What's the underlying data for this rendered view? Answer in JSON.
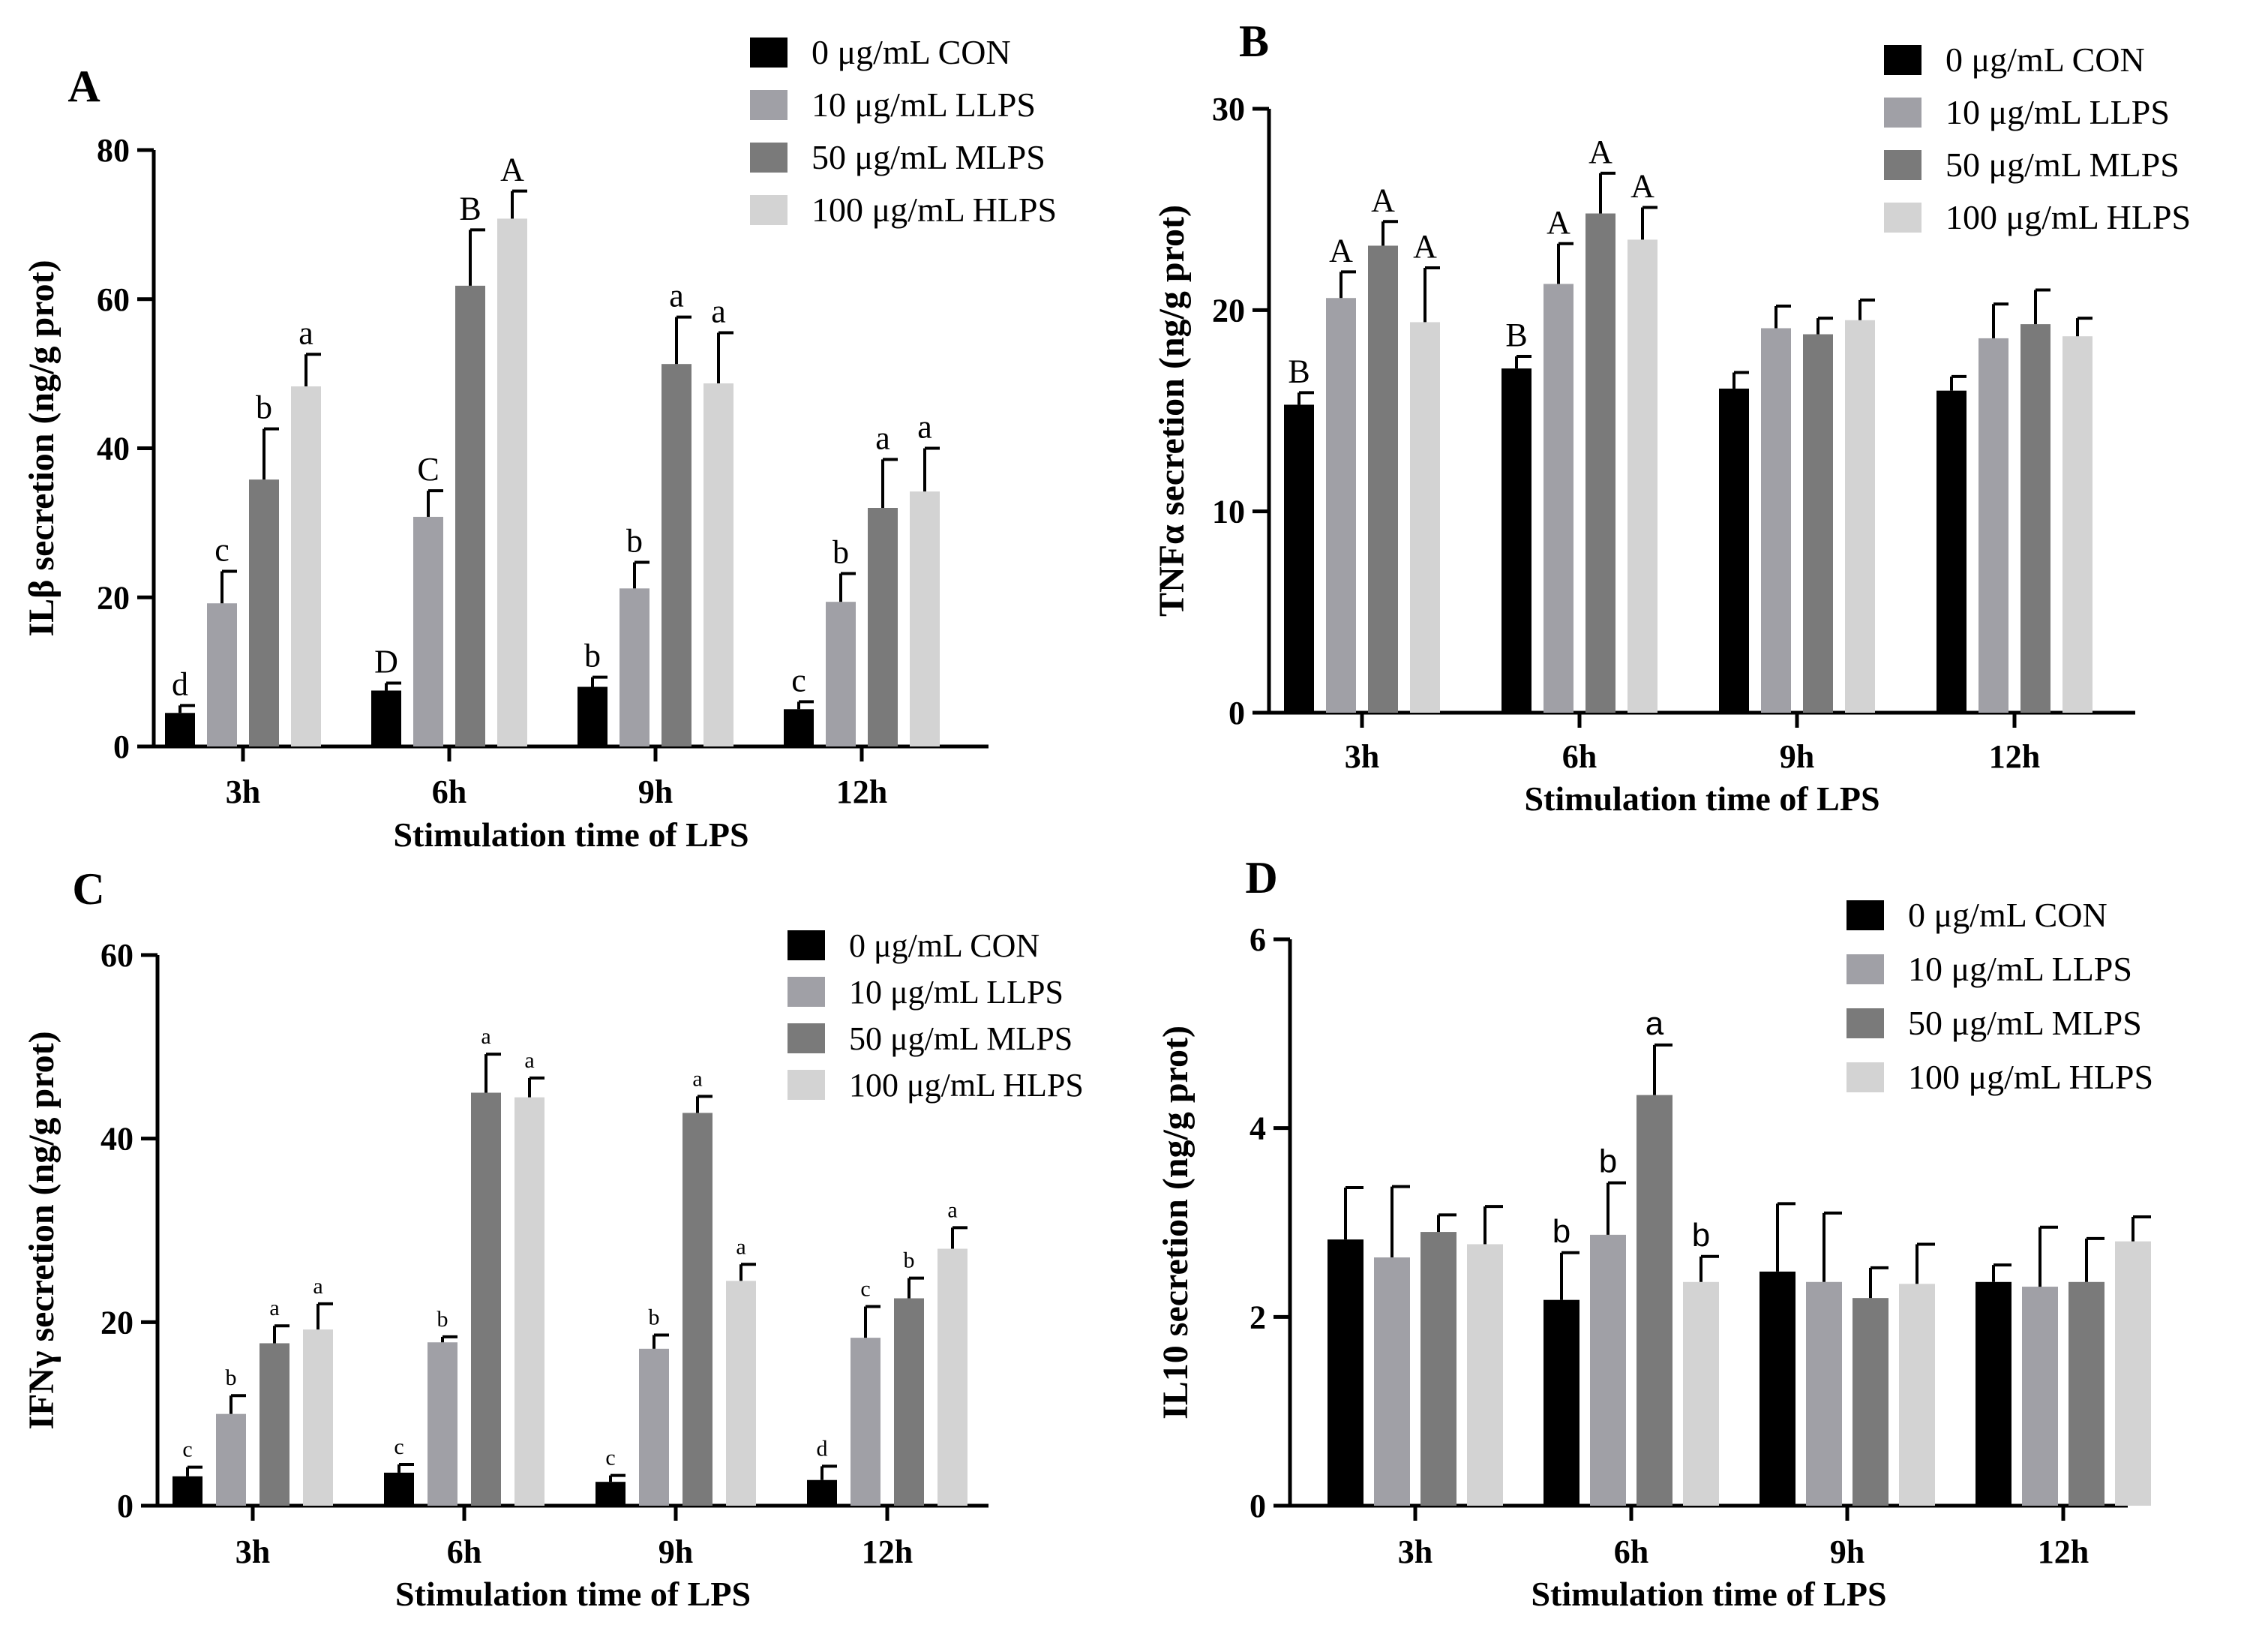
{
  "figure": {
    "categories": [
      "3h",
      "6h",
      "9h",
      "12h"
    ],
    "series_names": [
      "0 μg/mL CON",
      "10 μg/mL LLPS",
      "50 μg/mL MLPS",
      "100 μg/mL HLPS"
    ],
    "colors": {
      "CON": "#000000",
      "LLPS": "#a0a0a6",
      "MLPS": "#7a7a7a",
      "HLPS": "#d3d3d3",
      "axis": "#000000"
    }
  },
  "chart_data": [
    {
      "panel": "A",
      "type": "bar",
      "title": "",
      "xlabel": "Stimulation time of LPS",
      "ylabel": "ILβ secretion (ng/g prot)",
      "ylim": [
        0,
        80
      ],
      "yticks": [
        0,
        20,
        40,
        60,
        80
      ],
      "categories": [
        "3h",
        "6h",
        "9h",
        "12h"
      ],
      "legend_position": "top-right",
      "series": [
        {
          "name": "0 μg/mL CON",
          "values": [
            4.5,
            7.5,
            8.0,
            5.0
          ],
          "errors": [
            1.0,
            1.0,
            1.3,
            1.0
          ],
          "letters": [
            "d",
            "D",
            "b",
            "c"
          ]
        },
        {
          "name": "10 μg/mL LLPS",
          "values": [
            19.2,
            30.8,
            21.2,
            19.4
          ],
          "errors": [
            4.3,
            3.5,
            3.5,
            3.8
          ],
          "letters": [
            "c",
            "C",
            "b",
            "b"
          ]
        },
        {
          "name": "50 μg/mL MLPS",
          "values": [
            35.8,
            61.8,
            51.3,
            32.0
          ],
          "errors": [
            6.8,
            7.5,
            6.3,
            6.5
          ],
          "letters": [
            "b",
            "B",
            "a",
            "a"
          ]
        },
        {
          "name": "100 μg/mL HLPS",
          "values": [
            48.3,
            70.8,
            48.7,
            34.2
          ],
          "errors": [
            4.3,
            3.7,
            6.8,
            5.8
          ],
          "letters": [
            "a",
            "A",
            "a",
            "a"
          ]
        }
      ]
    },
    {
      "panel": "B",
      "type": "bar",
      "title": "",
      "xlabel": "Stimulation time of LPS",
      "ylabel": "TNFα  secretion (ng/g prot)",
      "ylim": [
        0,
        30
      ],
      "yticks": [
        0,
        10,
        20,
        30
      ],
      "categories": [
        "3h",
        "6h",
        "9h",
        "12h"
      ],
      "legend_position": "top-right",
      "series": [
        {
          "name": "0 μg/mL CON",
          "values": [
            15.3,
            17.1,
            16.1,
            16.0
          ],
          "errors": [
            0.6,
            0.6,
            0.8,
            0.7
          ],
          "letters": [
            "B",
            "B",
            "",
            ""
          ]
        },
        {
          "name": "10 μg/mL LLPS",
          "values": [
            20.6,
            21.3,
            19.1,
            18.6
          ],
          "errors": [
            1.3,
            2.0,
            1.1,
            1.7
          ],
          "letters": [
            "A",
            "A",
            "",
            ""
          ]
        },
        {
          "name": "50 μg/mL MLPS",
          "values": [
            23.2,
            24.8,
            18.8,
            19.3
          ],
          "errors": [
            1.2,
            2.0,
            0.8,
            1.7
          ],
          "letters": [
            "A",
            "A",
            "",
            ""
          ]
        },
        {
          "name": "100 μg/mL HLPS",
          "values": [
            19.4,
            23.5,
            19.5,
            18.7
          ],
          "errors": [
            2.7,
            1.6,
            1.0,
            0.9
          ],
          "letters": [
            "A",
            "A",
            "",
            ""
          ]
        }
      ]
    },
    {
      "panel": "C",
      "type": "bar",
      "title": "",
      "xlabel": "Stimulation time of LPS",
      "ylabel": "IFNγ secretion (ng/g prot)",
      "ylim": [
        0,
        60
      ],
      "yticks": [
        0,
        20,
        40,
        60
      ],
      "categories": [
        "3h",
        "6h",
        "9h",
        "12h"
      ],
      "legend_position": "top-right",
      "series": [
        {
          "name": "0 μg/mL CON",
          "values": [
            3.2,
            3.6,
            2.6,
            2.8
          ],
          "errors": [
            1.0,
            0.9,
            0.7,
            1.5
          ],
          "letters": [
            "c",
            "c",
            "c",
            "d"
          ]
        },
        {
          "name": "10 μg/mL LLPS",
          "values": [
            10.0,
            17.8,
            17.1,
            18.3
          ],
          "errors": [
            2.0,
            0.6,
            1.5,
            3.4
          ],
          "letters": [
            "b",
            "b",
            "b",
            "c"
          ]
        },
        {
          "name": "50 μg/mL MLPS",
          "values": [
            17.7,
            45.0,
            42.8,
            22.6
          ],
          "errors": [
            1.9,
            4.2,
            1.8,
            2.2
          ],
          "letters": [
            "a",
            "a",
            "a",
            "b"
          ]
        },
        {
          "name": "100 μg/mL HLPS",
          "values": [
            19.2,
            44.5,
            24.5,
            28.0
          ],
          "errors": [
            2.8,
            2.1,
            1.8,
            2.3
          ],
          "letters": [
            "a",
            "a",
            "a",
            "a"
          ]
        }
      ]
    },
    {
      "panel": "D",
      "type": "bar",
      "title": "",
      "xlabel": "Stimulation time of LPS",
      "ylabel": "IL10 secretion (ng/g prot)",
      "ylim": [
        0,
        6
      ],
      "yticks": [
        0,
        2,
        4,
        6
      ],
      "categories": [
        "3h",
        "6h",
        "9h",
        "12h"
      ],
      "legend_position": "top-right",
      "series": [
        {
          "name": "0 μg/mL CON",
          "values": [
            2.82,
            2.18,
            2.48,
            2.37
          ],
          "errors": [
            0.55,
            0.5,
            0.72,
            0.18
          ],
          "letters": [
            "",
            "b",
            "",
            ""
          ]
        },
        {
          "name": "10 μg/mL LLPS",
          "values": [
            2.63,
            2.87,
            2.37,
            2.32
          ],
          "errors": [
            0.75,
            0.55,
            0.73,
            0.63
          ],
          "letters": [
            "",
            "b",
            "",
            ""
          ]
        },
        {
          "name": "50 μg/mL MLPS",
          "values": [
            2.9,
            4.35,
            2.2,
            2.37
          ],
          "errors": [
            0.18,
            0.53,
            0.32,
            0.46
          ],
          "letters": [
            "",
            "a",
            "",
            ""
          ]
        },
        {
          "name": "100 μg/mL HLPS",
          "values": [
            2.77,
            2.37,
            2.35,
            2.8
          ],
          "errors": [
            0.4,
            0.27,
            0.42,
            0.26
          ],
          "letters": [
            "",
            "b",
            "",
            ""
          ]
        }
      ]
    }
  ]
}
